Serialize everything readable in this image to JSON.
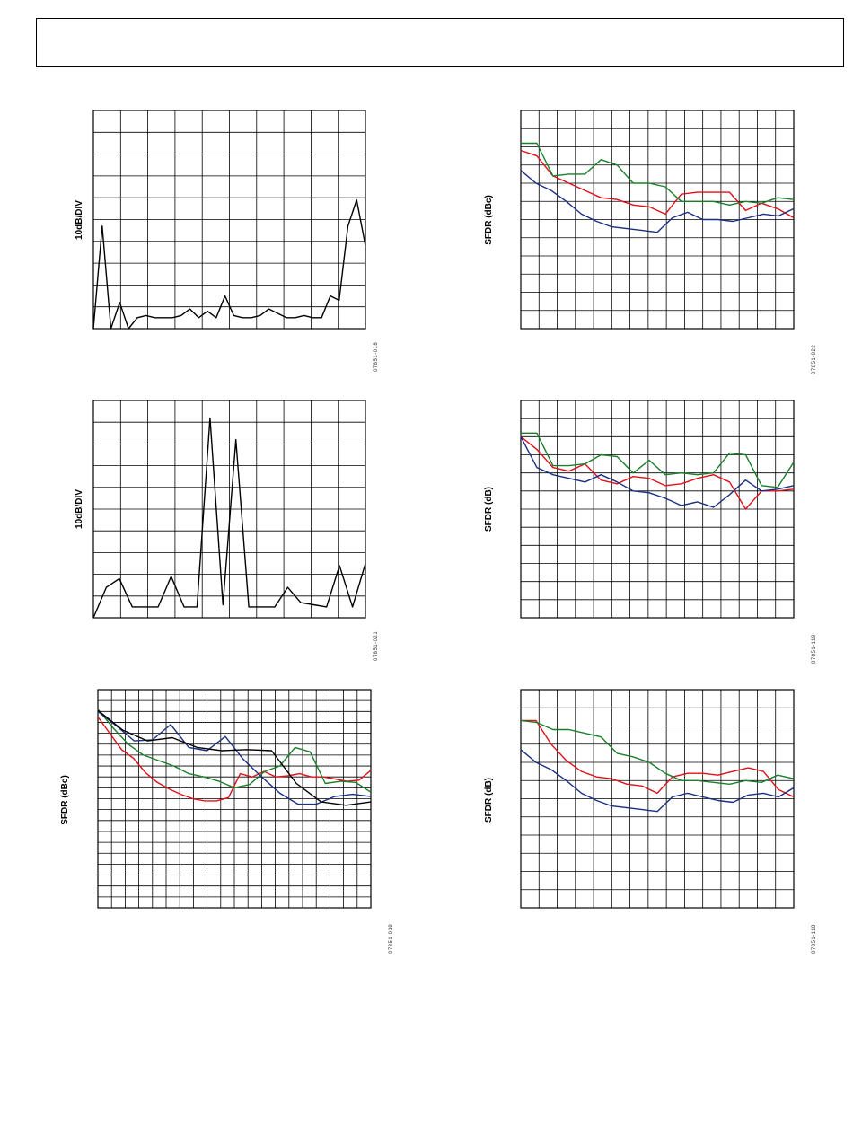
{
  "figures": [
    {
      "id": "fig-spectrum-1",
      "ylabel": "10dB/DIV",
      "figure_code": "07851-018"
    },
    {
      "id": "fig-sfdr-dbc-top-right",
      "ylabel": "SFDR (dBc)",
      "figure_code": "07851-022"
    },
    {
      "id": "fig-spectrum-2",
      "ylabel": "10dB/DIV",
      "figure_code": "07851-021"
    },
    {
      "id": "fig-sfdr-db-middle-right",
      "ylabel": "SFDR (dB)",
      "figure_code": "07851-119"
    },
    {
      "id": "fig-sfdr-dbc-bottom-left",
      "ylabel": "SFDR (dBc)",
      "figure_code": "07851-019"
    },
    {
      "id": "fig-sfdr-db-bottom-right",
      "ylabel": "SFDR (dB)",
      "figure_code": "07851-118"
    }
  ],
  "colors": {
    "red": "#e0101a",
    "green": "#1a7f2a",
    "blue": "#1a2f80",
    "black": "#000000",
    "grid": "#000000"
  },
  "chart_data": [
    {
      "type": "line",
      "title": "",
      "ylabel": "10dB/DIV",
      "xlabel": "",
      "grid": true,
      "x_divisions": 10,
      "y_divisions": 10,
      "ylim": [
        0,
        10
      ],
      "series": [
        {
          "values": [
            0.0,
            4.7,
            0.0,
            1.2,
            0.0,
            0.5,
            0.6,
            0.5,
            0.5,
            0.5,
            0.6,
            0.9,
            0.5,
            0.8,
            0.5,
            1.5,
            0.6,
            0.5,
            0.5,
            0.6,
            0.9,
            0.7,
            0.5,
            0.5,
            0.6,
            0.5,
            0.5,
            1.5,
            1.3,
            4.7,
            5.9,
            3.8
          ]
        }
      ]
    },
    {
      "type": "line",
      "title": "",
      "ylabel": "SFDR (dBc)",
      "xlabel": "",
      "grid": true,
      "x_divisions": 15,
      "y_divisions": 12,
      "ylim": [
        0,
        12
      ],
      "series": [
        {
          "color": "red",
          "values": [
            9.8,
            9.5,
            8.4,
            8.0,
            7.6,
            7.2,
            7.1,
            6.8,
            6.7,
            6.3,
            7.4,
            7.5,
            7.5,
            7.5,
            6.5,
            6.9,
            6.6,
            6.1
          ]
        },
        {
          "color": "green",
          "values": [
            10.2,
            10.2,
            8.4,
            8.5,
            8.5,
            9.3,
            9.0,
            8.0,
            8.0,
            7.8,
            7.0,
            7.0,
            7.0,
            6.8,
            7.0,
            6.9,
            7.2,
            7.1
          ]
        },
        {
          "color": "blue",
          "values": [
            8.7,
            8.0,
            7.6,
            7.0,
            6.3,
            5.9,
            5.6,
            5.5,
            5.4,
            5.3,
            6.1,
            6.4,
            6.0,
            6.0,
            5.9,
            6.1,
            6.3,
            6.2,
            6.6
          ]
        }
      ]
    },
    {
      "type": "line",
      "title": "",
      "ylabel": "10dB/DIV",
      "xlabel": "",
      "grid": true,
      "x_divisions": 10,
      "y_divisions": 10,
      "ylim": [
        0,
        10
      ],
      "series": [
        {
          "values": [
            0.0,
            1.4,
            1.8,
            0.5,
            0.5,
            0.5,
            1.9,
            0.5,
            0.5,
            9.2,
            0.6,
            8.2,
            0.5,
            0.5,
            0.5,
            1.4,
            0.7,
            0.6,
            0.5,
            2.4,
            0.5,
            2.5
          ]
        }
      ]
    },
    {
      "type": "line",
      "title": "",
      "ylabel": "SFDR (dB)",
      "xlabel": "",
      "grid": true,
      "x_divisions": 15,
      "y_divisions": 12,
      "ylim": [
        0,
        12
      ],
      "series": [
        {
          "color": "red",
          "values": [
            10.0,
            9.3,
            8.3,
            8.1,
            8.5,
            7.6,
            7.4,
            7.8,
            7.7,
            7.3,
            7.4,
            7.7,
            7.9,
            7.5,
            6.0,
            7.0,
            7.0,
            7.1
          ]
        },
        {
          "color": "green",
          "values": [
            10.2,
            10.2,
            8.4,
            8.4,
            8.5,
            9.0,
            8.9,
            8.0,
            8.7,
            7.9,
            8.0,
            7.9,
            8.0,
            9.1,
            9.0,
            7.3,
            7.2,
            8.6
          ]
        },
        {
          "color": "blue",
          "values": [
            10.0,
            8.3,
            7.9,
            7.7,
            7.5,
            7.9,
            7.5,
            7.0,
            6.9,
            6.6,
            6.2,
            6.4,
            6.1,
            6.8,
            7.6,
            7.0,
            7.1,
            7.3
          ]
        }
      ]
    },
    {
      "type": "line",
      "title": "",
      "ylabel": "SFDR (dBc)",
      "xlabel": "",
      "grid": true,
      "x_divisions": 20,
      "y_divisions": 20,
      "ylim": [
        0,
        20
      ],
      "series": [
        {
          "color": "red",
          "values": [
            17.5,
            16.0,
            14.5,
            13.7,
            12.4,
            11.5,
            10.9,
            10.4,
            10.0,
            9.8,
            9.8,
            10.1,
            12.3,
            12.0,
            12.5,
            12.0,
            12.1,
            12.3,
            12.0,
            12.0,
            11.8,
            11.6,
            11.7,
            12.6
          ]
        },
        {
          "color": "green",
          "values": [
            18.2,
            16.5,
            15.0,
            14.0,
            13.5,
            13.0,
            12.3,
            12.0,
            11.6,
            11.0,
            11.3,
            12.5,
            13.0,
            14.7,
            14.3,
            11.4,
            11.6,
            11.5,
            10.6
          ]
        },
        {
          "color": "blue",
          "values": [
            18.0,
            16.7,
            15.3,
            15.4,
            16.8,
            14.7,
            14.4,
            15.7,
            13.6,
            12.0,
            10.5,
            9.5,
            9.5,
            10.2,
            10.4,
            10.2
          ]
        },
        {
          "color": "black",
          "values": [
            18.1,
            16.3,
            15.3,
            15.6,
            14.7,
            14.4,
            14.5,
            14.4,
            11.4,
            9.7,
            9.4,
            9.7
          ]
        }
      ]
    },
    {
      "type": "line",
      "title": "",
      "ylabel": "SFDR (dB)",
      "xlabel": "",
      "grid": true,
      "x_divisions": 15,
      "y_divisions": 12,
      "ylim": [
        0,
        12
      ],
      "series": [
        {
          "color": "red",
          "values": [
            10.3,
            10.3,
            9.0,
            8.1,
            7.5,
            7.2,
            7.1,
            6.8,
            6.7,
            6.3,
            7.2,
            7.4,
            7.4,
            7.3,
            7.5,
            7.7,
            7.5,
            6.5,
            6.1
          ]
        },
        {
          "color": "green",
          "values": [
            10.3,
            10.2,
            9.8,
            9.8,
            9.6,
            9.4,
            8.5,
            8.3,
            8.0,
            7.4,
            7.0,
            7.0,
            6.9,
            6.8,
            7.0,
            6.9,
            7.3,
            7.1
          ]
        },
        {
          "color": "blue",
          "values": [
            8.7,
            8.0,
            7.6,
            7.0,
            6.3,
            5.9,
            5.6,
            5.5,
            5.4,
            5.3,
            6.1,
            6.3,
            6.1,
            5.9,
            5.8,
            6.2,
            6.3,
            6.1,
            6.6
          ]
        }
      ]
    }
  ]
}
